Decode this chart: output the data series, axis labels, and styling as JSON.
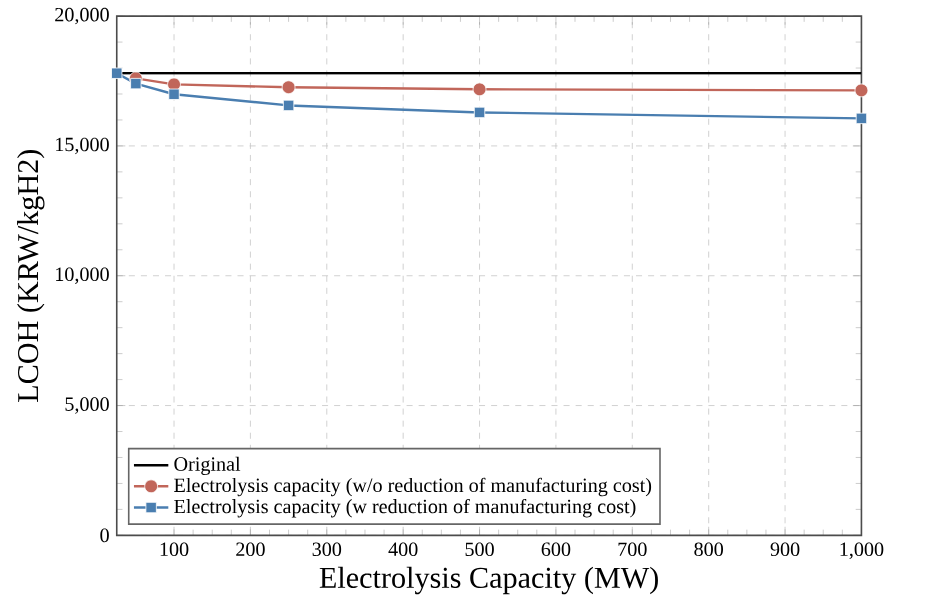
{
  "chart_data": {
    "type": "line",
    "xlabel": "Electrolysis Capacity (MW)",
    "ylabel": "LCOH (KRW/kgH2)",
    "xlim": [
      25,
      1000
    ],
    "xticks": [
      100,
      200,
      300,
      400,
      500,
      600,
      700,
      800,
      900,
      {
        "value": 1000,
        "label": "1,000"
      }
    ],
    "ylim": [
      0,
      20000
    ],
    "yticks": [
      0,
      {
        "value": 5000,
        "label": "5,000"
      },
      {
        "value": 10000,
        "label": "10,000"
      },
      {
        "value": 15000,
        "label": "15,000"
      },
      {
        "value": 20000,
        "label": "20,000"
      }
    ],
    "grid": true,
    "legend": "bottom left",
    "line_style": "solid",
    "series": [
      {
        "name": "Original",
        "color": "#000000",
        "marker": "none",
        "x": [
          25,
          1000
        ],
        "values": [
          17800,
          17800
        ]
      },
      {
        "name": "Electrolysis capacity (w/o reduction of manufacturing cost)",
        "color": "#c1665a",
        "marker": "circle",
        "x": [
          50,
          100,
          250,
          500,
          1000
        ],
        "values": [
          17600,
          17370,
          17260,
          17180,
          17140
        ]
      },
      {
        "name": "Electrolysis capacity (w reduction of manufacturing cost)",
        "color": "#4a7eb0",
        "marker": "square",
        "x": [
          25,
          50,
          100,
          250,
          500,
          1000
        ],
        "values": [
          17800,
          17400,
          16990,
          16560,
          16290,
          16060
        ]
      }
    ]
  }
}
